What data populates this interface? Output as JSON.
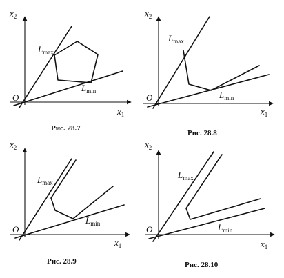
{
  "axes": {
    "x_label": "x",
    "x_sub": "1",
    "y_label": "x",
    "y_sub": "2",
    "origin": "O"
  },
  "labels": {
    "lmax_main": "L",
    "lmax_sub": "max",
    "lmin_main": "L",
    "lmin_sub": "min"
  },
  "figures": [
    {
      "caption": "Рис. 28.7"
    },
    {
      "caption": "Рис. 28.8"
    },
    {
      "caption": "Рис. 28.9"
    },
    {
      "caption": "Рис. 28.10"
    }
  ]
}
